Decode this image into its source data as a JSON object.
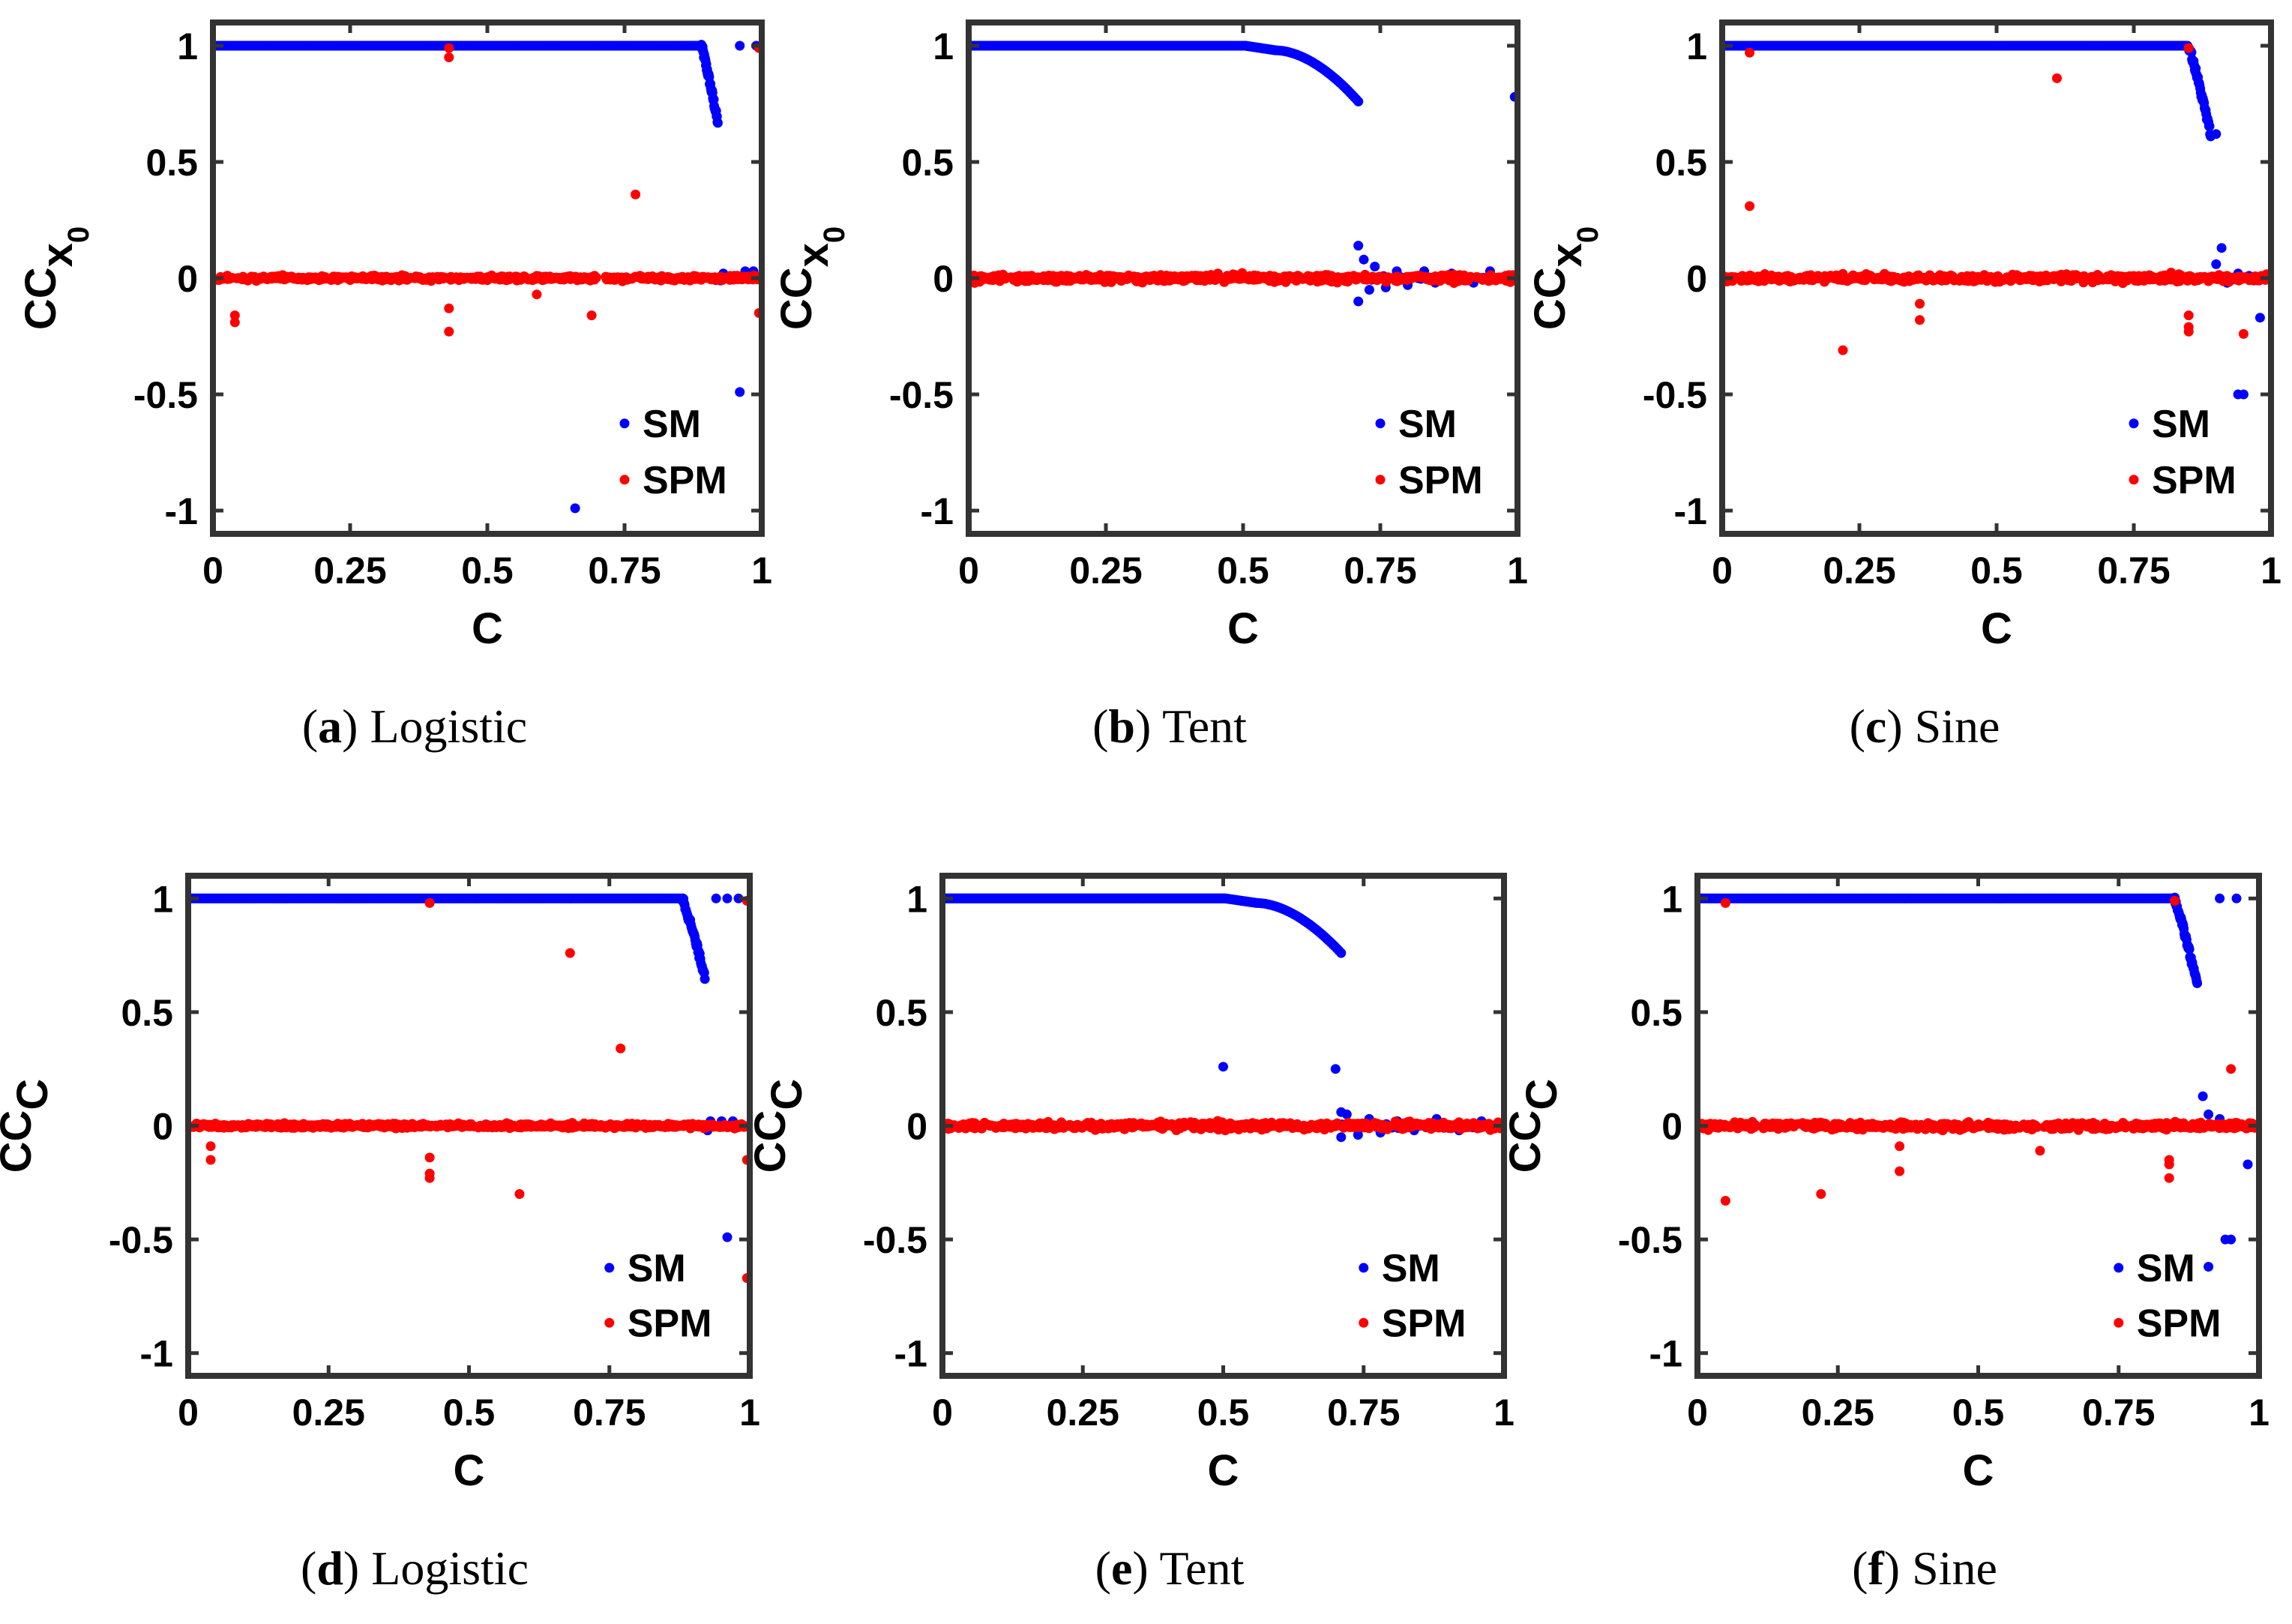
{
  "colors": {
    "sm": "#0000ff",
    "spm": "#ff0000",
    "axis": "#333333",
    "text": "#000000"
  },
  "chart_data": [
    {
      "panel": "a",
      "map": "Logistic",
      "type": "scatter",
      "xlabel": "C",
      "ylabel": {
        "main": "CC",
        "sub1": "x",
        "sub2": "0"
      },
      "xlim": [
        0,
        1
      ],
      "ylim": [
        -1.1,
        1.1
      ],
      "xticks": [
        "0",
        "0.25",
        "0.5",
        "0.75",
        "1"
      ],
      "yticks": [
        "-1",
        "-0.5",
        "0",
        "0.5",
        "1"
      ],
      "legend": [
        "SM",
        "SPM"
      ],
      "legend_position": "bottom-right",
      "series": [
        {
          "name": "SM",
          "curve": "flat-drop",
          "dropStart": 0.89,
          "dropEnd": 0.92,
          "dropTo": 0.67,
          "points": [
            [
              0.93,
              0.02
            ],
            [
              0.94,
              0.0
            ],
            [
              0.95,
              0.01
            ],
            [
              0.97,
              0.03
            ],
            [
              0.99,
              1.0
            ],
            [
              0.96,
              1.0
            ],
            [
              0.985,
              0.03
            ],
            [
              0.96,
              -0.49
            ],
            [
              0.66,
              -0.99
            ],
            [
              0.925,
              -0.01
            ]
          ]
        },
        {
          "name": "SPM",
          "curve": "noise",
          "noise": 0.02,
          "points": [
            [
              0.43,
              0.99
            ],
            [
              0.43,
              0.95
            ],
            [
              0.995,
              0.99
            ],
            [
              0.77,
              0.36
            ],
            [
              0.04,
              -0.16
            ],
            [
              0.04,
              -0.19
            ],
            [
              0.43,
              -0.13
            ],
            [
              0.43,
              -0.23
            ],
            [
              0.59,
              -0.07
            ],
            [
              0.69,
              -0.16
            ],
            [
              0.995,
              -0.15
            ]
          ]
        }
      ]
    },
    {
      "panel": "b",
      "map": "Tent",
      "type": "scatter",
      "xlabel": "C",
      "ylabel": {
        "main": "CC",
        "sub1": "x",
        "sub2": "0"
      },
      "xlim": [
        0,
        1
      ],
      "ylim": [
        -1.1,
        1.1
      ],
      "xticks": [
        "0",
        "0.25",
        "0.5",
        "0.75",
        "1"
      ],
      "yticks": [
        "-1",
        "-0.5",
        "0",
        "0.5",
        "1"
      ],
      "legend": [
        "SM",
        "SPM"
      ],
      "legend_position": "bottom-right",
      "series": [
        {
          "name": "SM",
          "curve": "curve-drop",
          "dropStart": 0.56,
          "dropEnd": 0.71,
          "dropTo": 0.76,
          "points": [
            [
              0.71,
              0.14
            ],
            [
              0.71,
              -0.1
            ],
            [
              0.72,
              0.08
            ],
            [
              0.73,
              -0.05
            ],
            [
              0.74,
              0.05
            ],
            [
              0.76,
              -0.04
            ],
            [
              0.78,
              0.03
            ],
            [
              0.8,
              -0.03
            ],
            [
              0.83,
              0.03
            ],
            [
              0.85,
              -0.02
            ],
            [
              0.88,
              0.02
            ],
            [
              0.92,
              -0.02
            ],
            [
              0.95,
              0.03
            ],
            [
              0.995,
              0.78
            ]
          ]
        },
        {
          "name": "SPM",
          "curve": "noise",
          "noise": 0.03,
          "points": []
        }
      ]
    },
    {
      "panel": "c",
      "map": "Sine",
      "type": "scatter",
      "xlabel": "C",
      "ylabel": {
        "main": "CC",
        "sub1": "x",
        "sub2": "0"
      },
      "xlim": [
        0,
        1
      ],
      "ylim": [
        -1.1,
        1.1
      ],
      "xticks": [
        "0",
        "0.25",
        "0.5",
        "0.75",
        "1"
      ],
      "yticks": [
        "-1",
        "-0.5",
        "0",
        "0.5",
        "1"
      ],
      "legend": [
        "SM",
        "SPM"
      ],
      "legend_position": "bottom-right",
      "series": [
        {
          "name": "SM",
          "curve": "flat-drop",
          "dropStart": 0.85,
          "dropEnd": 0.89,
          "dropTo": 0.62,
          "points": [
            [
              0.9,
              0.06
            ],
            [
              0.91,
              0.13
            ],
            [
              0.92,
              -0.02
            ],
            [
              0.94,
              0.02
            ],
            [
              0.96,
              0.01
            ],
            [
              0.98,
              -0.17
            ],
            [
              0.94,
              -0.5
            ],
            [
              0.95,
              -0.5
            ],
            [
              0.9,
              0.62
            ],
            [
              0.89,
              0.61
            ],
            [
              0.88,
              0.0
            ]
          ]
        },
        {
          "name": "SPM",
          "curve": "noise",
          "noise": 0.03,
          "points": [
            [
              0.05,
              0.97
            ],
            [
              0.05,
              0.31
            ],
            [
              0.61,
              0.86
            ],
            [
              0.85,
              0.99
            ],
            [
              0.22,
              -0.31
            ],
            [
              0.36,
              -0.11
            ],
            [
              0.36,
              -0.18
            ],
            [
              0.85,
              -0.16
            ],
            [
              0.85,
              -0.21
            ],
            [
              0.85,
              -0.23
            ],
            [
              0.95,
              -0.24
            ],
            [
              0.995,
              0.0
            ]
          ]
        }
      ]
    },
    {
      "panel": "d",
      "map": "Logistic",
      "type": "scatter",
      "xlabel": "C",
      "ylabel": {
        "main": "CC",
        "sub1": "C",
        "sub2": ""
      },
      "xlim": [
        0,
        1
      ],
      "ylim": [
        -1.1,
        1.1
      ],
      "xticks": [
        "0",
        "0.25",
        "0.5",
        "0.75",
        "1"
      ],
      "yticks": [
        "-1",
        "-0.5",
        "0",
        "0.5",
        "1"
      ],
      "legend": [
        "SM",
        "SPM"
      ],
      "legend_position": "bottom-right",
      "series": [
        {
          "name": "SM",
          "curve": "flat-drop",
          "dropStart": 0.88,
          "dropEnd": 0.92,
          "dropTo": 0.66,
          "points": [
            [
              0.93,
              0.02
            ],
            [
              0.95,
              0.02
            ],
            [
              0.97,
              0.02
            ],
            [
              0.99,
              0.0
            ],
            [
              0.94,
              1.0
            ],
            [
              0.96,
              1.0
            ],
            [
              0.98,
              1.0
            ],
            [
              0.96,
              -0.49
            ],
            [
              0.925,
              -0.02
            ]
          ]
        },
        {
          "name": "SPM",
          "curve": "noise",
          "noise": 0.02,
          "points": [
            [
              0.43,
              0.98
            ],
            [
              0.995,
              0.99
            ],
            [
              0.68,
              0.76
            ],
            [
              0.77,
              0.34
            ],
            [
              0.04,
              -0.09
            ],
            [
              0.04,
              -0.15
            ],
            [
              0.43,
              -0.14
            ],
            [
              0.43,
              -0.21
            ],
            [
              0.43,
              -0.23
            ],
            [
              0.59,
              -0.3
            ],
            [
              0.995,
              -0.15
            ],
            [
              0.995,
              -0.67
            ]
          ]
        }
      ]
    },
    {
      "panel": "e",
      "map": "Tent",
      "type": "scatter",
      "xlabel": "C",
      "ylabel": {
        "main": "CC",
        "sub1": "C",
        "sub2": ""
      },
      "xlim": [
        0,
        1
      ],
      "ylim": [
        -1.1,
        1.1
      ],
      "xticks": [
        "0",
        "0.25",
        "0.5",
        "0.75",
        "1"
      ],
      "yticks": [
        "-1",
        "-0.5",
        "0",
        "0.5",
        "1"
      ],
      "legend": [
        "SM",
        "SPM"
      ],
      "legend_position": "bottom-right",
      "series": [
        {
          "name": "SM",
          "curve": "curve-drop",
          "dropStart": 0.56,
          "dropEnd": 0.71,
          "dropTo": 0.76,
          "points": [
            [
              0.5,
              0.26
            ],
            [
              0.7,
              0.25
            ],
            [
              0.71,
              0.06
            ],
            [
              0.71,
              -0.05
            ],
            [
              0.72,
              0.05
            ],
            [
              0.74,
              -0.04
            ],
            [
              0.76,
              0.03
            ],
            [
              0.78,
              -0.03
            ],
            [
              0.81,
              0.02
            ],
            [
              0.84,
              -0.02
            ],
            [
              0.88,
              0.03
            ],
            [
              0.92,
              -0.02
            ],
            [
              0.96,
              0.02
            ],
            [
              0.99,
              0.0
            ]
          ]
        },
        {
          "name": "SPM",
          "curve": "noise",
          "noise": 0.03,
          "points": []
        }
      ]
    },
    {
      "panel": "f",
      "map": "Sine",
      "type": "scatter",
      "xlabel": "C",
      "ylabel": {
        "main": "CC",
        "sub1": "C",
        "sub2": ""
      },
      "xlim": [
        0,
        1
      ],
      "ylim": [
        -1.1,
        1.1
      ],
      "xticks": [
        "0",
        "0.25",
        "0.5",
        "0.75",
        "1"
      ],
      "yticks": [
        "-1",
        "-0.5",
        "0",
        "0.5",
        "1"
      ],
      "legend": [
        "SM",
        "SPM"
      ],
      "legend_position": "bottom-right",
      "series": [
        {
          "name": "SM",
          "curve": "flat-drop",
          "dropStart": 0.85,
          "dropEnd": 0.89,
          "dropTo": 0.62,
          "points": [
            [
              0.9,
              0.13
            ],
            [
              0.91,
              0.05
            ],
            [
              0.93,
              0.03
            ],
            [
              0.96,
              0.01
            ],
            [
              0.98,
              -0.17
            ],
            [
              0.94,
              -0.5
            ],
            [
              0.95,
              -0.5
            ],
            [
              0.91,
              -0.62
            ],
            [
              0.93,
              1.0
            ],
            [
              0.96,
              1.0
            ]
          ]
        },
        {
          "name": "SPM",
          "curve": "noise",
          "noise": 0.03,
          "points": [
            [
              0.05,
              0.98
            ],
            [
              0.85,
              0.99
            ],
            [
              0.05,
              -0.33
            ],
            [
              0.22,
              -0.3
            ],
            [
              0.36,
              -0.09
            ],
            [
              0.36,
              -0.2
            ],
            [
              0.61,
              -0.11
            ],
            [
              0.84,
              -0.15
            ],
            [
              0.84,
              -0.17
            ],
            [
              0.84,
              -0.23
            ],
            [
              0.95,
              0.25
            ],
            [
              0.995,
              0.0
            ]
          ]
        }
      ]
    }
  ],
  "captions": [
    {
      "letter": "a",
      "text": "Logistic"
    },
    {
      "letter": "b",
      "text": "Tent"
    },
    {
      "letter": "c",
      "text": "Sine"
    },
    {
      "letter": "d",
      "text": "Logistic"
    },
    {
      "letter": "e",
      "text": "Tent"
    },
    {
      "letter": "f",
      "text": "Sine"
    }
  ]
}
